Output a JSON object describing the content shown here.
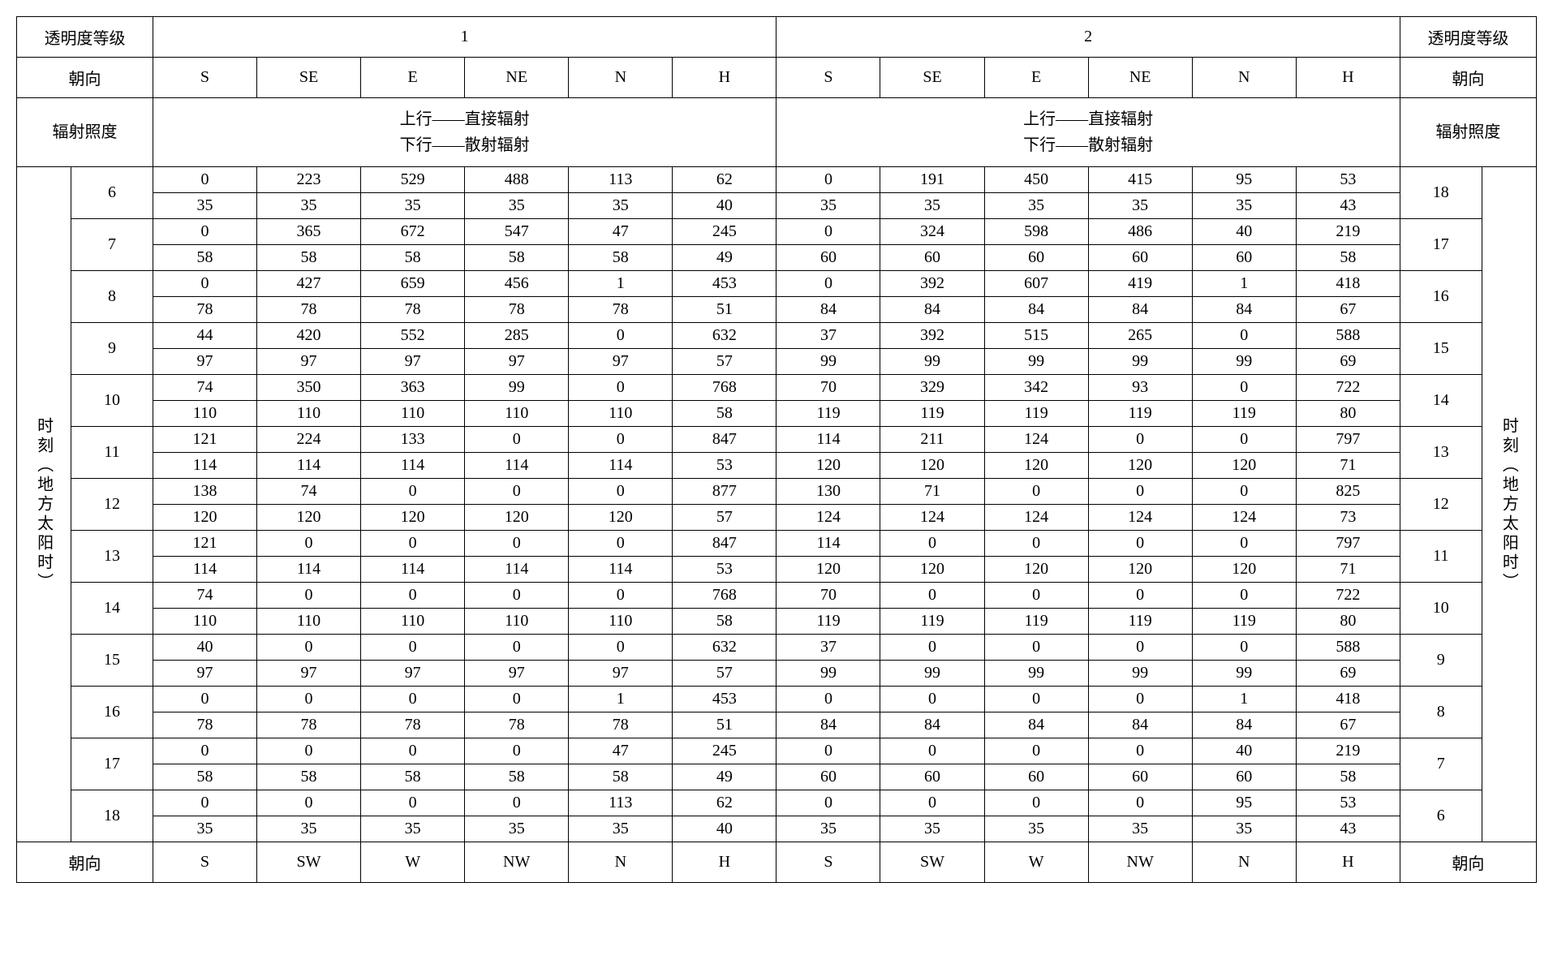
{
  "headers": {
    "transparency_label": "透明度等级",
    "orientation_label": "朝向",
    "irradiance_label": "辐射照度",
    "time_label": "时刻（地方太阳时）",
    "level1": "1",
    "level2": "2",
    "radiation_line1": "上行——直接辐射",
    "radiation_line2": "下行——散射辐射"
  },
  "top_orientations": [
    "S",
    "SE",
    "E",
    "NE",
    "N",
    "H"
  ],
  "bottom_orientations": [
    "S",
    "SW",
    "W",
    "NW",
    "N",
    "H"
  ],
  "hours_left": [
    "6",
    "7",
    "8",
    "9",
    "10",
    "11",
    "12",
    "13",
    "14",
    "15",
    "16",
    "17",
    "18"
  ],
  "hours_right": [
    "18",
    "17",
    "16",
    "15",
    "14",
    "13",
    "12",
    "11",
    "10",
    "9",
    "8",
    "7",
    "6"
  ],
  "data": [
    {
      "top": [
        "0",
        "223",
        "529",
        "488",
        "113",
        "62",
        "0",
        "191",
        "450",
        "415",
        "95",
        "53"
      ],
      "bot": [
        "35",
        "35",
        "35",
        "35",
        "35",
        "40",
        "35",
        "35",
        "35",
        "35",
        "35",
        "43"
      ]
    },
    {
      "top": [
        "0",
        "365",
        "672",
        "547",
        "47",
        "245",
        "0",
        "324",
        "598",
        "486",
        "40",
        "219"
      ],
      "bot": [
        "58",
        "58",
        "58",
        "58",
        "58",
        "49",
        "60",
        "60",
        "60",
        "60",
        "60",
        "58"
      ]
    },
    {
      "top": [
        "0",
        "427",
        "659",
        "456",
        "1",
        "453",
        "0",
        "392",
        "607",
        "419",
        "1",
        "418"
      ],
      "bot": [
        "78",
        "78",
        "78",
        "78",
        "78",
        "51",
        "84",
        "84",
        "84",
        "84",
        "84",
        "67"
      ]
    },
    {
      "top": [
        "44",
        "420",
        "552",
        "285",
        "0",
        "632",
        "37",
        "392",
        "515",
        "265",
        "0",
        "588"
      ],
      "bot": [
        "97",
        "97",
        "97",
        "97",
        "97",
        "57",
        "99",
        "99",
        "99",
        "99",
        "99",
        "69"
      ]
    },
    {
      "top": [
        "74",
        "350",
        "363",
        "99",
        "0",
        "768",
        "70",
        "329",
        "342",
        "93",
        "0",
        "722"
      ],
      "bot": [
        "110",
        "110",
        "110",
        "110",
        "110",
        "58",
        "119",
        "119",
        "119",
        "119",
        "119",
        "80"
      ]
    },
    {
      "top": [
        "121",
        "224",
        "133",
        "0",
        "0",
        "847",
        "114",
        "211",
        "124",
        "0",
        "0",
        "797"
      ],
      "bot": [
        "114",
        "114",
        "114",
        "114",
        "114",
        "53",
        "120",
        "120",
        "120",
        "120",
        "120",
        "71"
      ]
    },
    {
      "top": [
        "138",
        "74",
        "0",
        "0",
        "0",
        "877",
        "130",
        "71",
        "0",
        "0",
        "0",
        "825"
      ],
      "bot": [
        "120",
        "120",
        "120",
        "120",
        "120",
        "57",
        "124",
        "124",
        "124",
        "124",
        "124",
        "73"
      ]
    },
    {
      "top": [
        "121",
        "0",
        "0",
        "0",
        "0",
        "847",
        "114",
        "0",
        "0",
        "0",
        "0",
        "797"
      ],
      "bot": [
        "114",
        "114",
        "114",
        "114",
        "114",
        "53",
        "120",
        "120",
        "120",
        "120",
        "120",
        "71"
      ]
    },
    {
      "top": [
        "74",
        "0",
        "0",
        "0",
        "0",
        "768",
        "70",
        "0",
        "0",
        "0",
        "0",
        "722"
      ],
      "bot": [
        "110",
        "110",
        "110",
        "110",
        "110",
        "58",
        "119",
        "119",
        "119",
        "119",
        "119",
        "80"
      ]
    },
    {
      "top": [
        "40",
        "0",
        "0",
        "0",
        "0",
        "632",
        "37",
        "0",
        "0",
        "0",
        "0",
        "588"
      ],
      "bot": [
        "97",
        "97",
        "97",
        "97",
        "97",
        "57",
        "99",
        "99",
        "99",
        "99",
        "99",
        "69"
      ]
    },
    {
      "top": [
        "0",
        "0",
        "0",
        "0",
        "1",
        "453",
        "0",
        "0",
        "0",
        "0",
        "1",
        "418"
      ],
      "bot": [
        "78",
        "78",
        "78",
        "78",
        "78",
        "51",
        "84",
        "84",
        "84",
        "84",
        "84",
        "67"
      ]
    },
    {
      "top": [
        "0",
        "0",
        "0",
        "0",
        "47",
        "245",
        "0",
        "0",
        "0",
        "0",
        "40",
        "219"
      ],
      "bot": [
        "58",
        "58",
        "58",
        "58",
        "58",
        "49",
        "60",
        "60",
        "60",
        "60",
        "60",
        "58"
      ]
    },
    {
      "top": [
        "0",
        "0",
        "0",
        "0",
        "113",
        "62",
        "0",
        "0",
        "0",
        "0",
        "95",
        "53"
      ],
      "bot": [
        "35",
        "35",
        "35",
        "35",
        "35",
        "40",
        "35",
        "35",
        "35",
        "35",
        "35",
        "43"
      ]
    }
  ],
  "styling": {
    "border_color": "#000000",
    "background_color": "#ffffff",
    "font_family": "SimSun, Times New Roman, serif",
    "base_font_size": 20,
    "header_padding": "10px 4px",
    "cell_padding": "4px 2px"
  }
}
